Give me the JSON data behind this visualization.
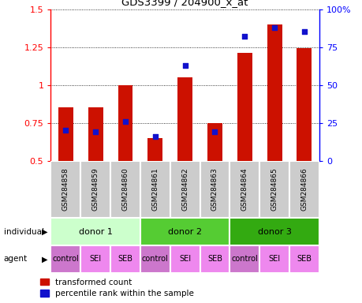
{
  "title": "GDS3399 / 204900_x_at",
  "samples": [
    "GSM284858",
    "GSM284859",
    "GSM284860",
    "GSM284861",
    "GSM284862",
    "GSM284863",
    "GSM284864",
    "GSM284865",
    "GSM284866"
  ],
  "transformed_count": [
    0.85,
    0.85,
    1.0,
    0.65,
    1.05,
    0.75,
    1.21,
    1.4,
    1.24
  ],
  "percentile_rank": [
    20,
    19,
    26,
    16,
    63,
    19,
    82,
    88,
    85
  ],
  "bar_color": "#cc1100",
  "dot_color": "#1111cc",
  "ylim": [
    0.5,
    1.5
  ],
  "y2lim": [
    0,
    100
  ],
  "yticks": [
    0.5,
    0.75,
    1.0,
    1.25,
    1.5
  ],
  "ytick_labels": [
    "0.5",
    "0.75",
    "1",
    "1.25",
    "1.5"
  ],
  "y2ticks": [
    0,
    25,
    50,
    75,
    100
  ],
  "y2tick_labels": [
    "0",
    "25",
    "50",
    "75",
    "100%"
  ],
  "individual_groups": [
    {
      "label": "donor 1",
      "start": 0,
      "end": 3,
      "color": "#ccffcc"
    },
    {
      "label": "donor 2",
      "start": 3,
      "end": 6,
      "color": "#55cc33"
    },
    {
      "label": "donor 3",
      "start": 6,
      "end": 9,
      "color": "#33aa11"
    }
  ],
  "agent_groups": [
    {
      "label": "control",
      "color": "#cc77cc"
    },
    {
      "label": "SEI",
      "color": "#ee88ee"
    },
    {
      "label": "SEB",
      "color": "#ee88ee"
    },
    {
      "label": "control",
      "color": "#cc77cc"
    },
    {
      "label": "SEI",
      "color": "#ee88ee"
    },
    {
      "label": "SEB",
      "color": "#ee88ee"
    },
    {
      "label": "control",
      "color": "#cc77cc"
    },
    {
      "label": "SEI",
      "color": "#ee88ee"
    },
    {
      "label": "SEB",
      "color": "#ee88ee"
    }
  ],
  "sample_bg_color": "#cccccc",
  "legend_red_label": "transformed count",
  "legend_blue_label": "percentile rank within the sample",
  "bar_width": 0.5,
  "individual_label": "individual",
  "agent_label": "agent"
}
